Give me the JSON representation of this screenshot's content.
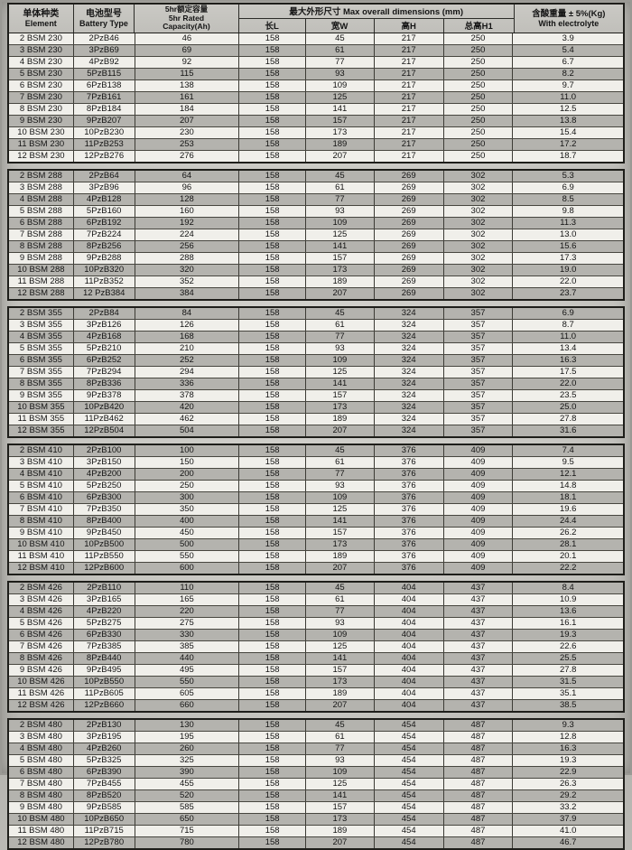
{
  "document_title": "Battery specifications table",
  "header": {
    "element_zh": "单体种类",
    "element_en": "Element",
    "battery_zh": "电池型号",
    "battery_en": "Battery Type",
    "capacity_lines": [
      "5hr额定容量",
      "5hr Rated",
      "Capacity(Ah)"
    ],
    "dims_title": "最大外形尺寸  Max overall dimensions (mm)",
    "dims_cols": [
      "长L",
      "宽W",
      "高H",
      "总高H1"
    ],
    "weight_zh": "含酸重量 ± 5%(Kg)",
    "weight_en": "With electrolyte"
  },
  "colors": {
    "paper": "#c8c7c2",
    "row_light": "#f0efea",
    "row_dark": "#b4b3ae",
    "border": "#1e1e1a"
  },
  "table": {
    "columns": [
      "Element",
      "Battery Type",
      "5hr Rated Capacity(Ah)",
      "长L",
      "宽W",
      "高H",
      "总高H1",
      "With electrolyte (Kg)"
    ],
    "groups": [
      {
        "series": "BSM 230",
        "first_row_shaded": false,
        "rows": [
          [
            "2 BSM 230",
            "2PzB46",
            "46",
            "158",
            "45",
            "217",
            "250",
            "3.9"
          ],
          [
            "3 BSM 230",
            "3PzB69",
            "69",
            "158",
            "61",
            "217",
            "250",
            "5.4"
          ],
          [
            "4 BSM 230",
            "4PzB92",
            "92",
            "158",
            "77",
            "217",
            "250",
            "6.7"
          ],
          [
            "5 BSM 230",
            "5PzB115",
            "115",
            "158",
            "93",
            "217",
            "250",
            "8.2"
          ],
          [
            "6 BSM 230",
            "6PzB138",
            "138",
            "158",
            "109",
            "217",
            "250",
            "9.7"
          ],
          [
            "7 BSM 230",
            "7PzB161",
            "161",
            "158",
            "125",
            "217",
            "250",
            "11.0"
          ],
          [
            "8 BSM 230",
            "8PzB184",
            "184",
            "158",
            "141",
            "217",
            "250",
            "12.5"
          ],
          [
            "9 BSM 230",
            "9PzB207",
            "207",
            "158",
            "157",
            "217",
            "250",
            "13.8"
          ],
          [
            "10 BSM 230",
            "10PzB230",
            "230",
            "158",
            "173",
            "217",
            "250",
            "15.4"
          ],
          [
            "11 BSM 230",
            "11PzB253",
            "253",
            "158",
            "189",
            "217",
            "250",
            "17.2"
          ],
          [
            "12 BSM 230",
            "12PzB276",
            "276",
            "158",
            "207",
            "217",
            "250",
            "18.7"
          ]
        ]
      },
      {
        "series": "BSM 288",
        "first_row_shaded": true,
        "rows": [
          [
            "2 BSM 288",
            "2PzB64",
            "64",
            "158",
            "45",
            "269",
            "302",
            "5.3"
          ],
          [
            "3 BSM 288",
            "3PzB96",
            "96",
            "158",
            "61",
            "269",
            "302",
            "6.9"
          ],
          [
            "4 BSM 288",
            "4PzB128",
            "128",
            "158",
            "77",
            "269",
            "302",
            "8.5"
          ],
          [
            "5 BSM 288",
            "5PzB160",
            "160",
            "158",
            "93",
            "269",
            "302",
            "9.8"
          ],
          [
            "6 BSM 288",
            "6PzB192",
            "192",
            "158",
            "109",
            "269",
            "302",
            "11.3"
          ],
          [
            "7 BSM 288",
            "7PzB224",
            "224",
            "158",
            "125",
            "269",
            "302",
            "13.0"
          ],
          [
            "8 BSM 288",
            "8PzB256",
            "256",
            "158",
            "141",
            "269",
            "302",
            "15.6"
          ],
          [
            "9 BSM 288",
            "9PzB288",
            "288",
            "158",
            "157",
            "269",
            "302",
            "17.3"
          ],
          [
            "10 BSM 288",
            "10PzB320",
            "320",
            "158",
            "173",
            "269",
            "302",
            "19.0"
          ],
          [
            "11 BSM 288",
            "11PzB352",
            "352",
            "158",
            "189",
            "269",
            "302",
            "22.0"
          ],
          [
            "12 BSM 288",
            "12 PzB384",
            "384",
            "158",
            "207",
            "269",
            "302",
            "23.7"
          ]
        ]
      },
      {
        "series": "BSM 355",
        "first_row_shaded": true,
        "rows": [
          [
            "2 BSM 355",
            "2PzB84",
            "84",
            "158",
            "45",
            "324",
            "357",
            "6.9"
          ],
          [
            "3 BSM 355",
            "3PzB126",
            "126",
            "158",
            "61",
            "324",
            "357",
            "8.7"
          ],
          [
            "4 BSM 355",
            "4PzB168",
            "168",
            "158",
            "77",
            "324",
            "357",
            "11.0"
          ],
          [
            "5 BSM 355",
            "5PzB210",
            "210",
            "158",
            "93",
            "324",
            "357",
            "13.4"
          ],
          [
            "6 BSM 355",
            "6PzB252",
            "252",
            "158",
            "109",
            "324",
            "357",
            "16.3"
          ],
          [
            "7 BSM 355",
            "7PzB294",
            "294",
            "158",
            "125",
            "324",
            "357",
            "17.5"
          ],
          [
            "8 BSM 355",
            "8PzB336",
            "336",
            "158",
            "141",
            "324",
            "357",
            "22.0"
          ],
          [
            "9 BSM 355",
            "9PzB378",
            "378",
            "158",
            "157",
            "324",
            "357",
            "23.5"
          ],
          [
            "10 BSM 355",
            "10PzB420",
            "420",
            "158",
            "173",
            "324",
            "357",
            "25.0"
          ],
          [
            "11 BSM 355",
            "11PzB462",
            "462",
            "158",
            "189",
            "324",
            "357",
            "27.8"
          ],
          [
            "12 BSM 355",
            "12PzB504",
            "504",
            "158",
            "207",
            "324",
            "357",
            "31.6"
          ]
        ]
      },
      {
        "series": "BSM 410",
        "first_row_shaded": true,
        "rows": [
          [
            "2 BSM 410",
            "2PzB100",
            "100",
            "158",
            "45",
            "376",
            "409",
            "7.4"
          ],
          [
            "3 BSM 410",
            "3PzB150",
            "150",
            "158",
            "61",
            "376",
            "409",
            "9.5"
          ],
          [
            "4 BSM 410",
            "4PzB200",
            "200",
            "158",
            "77",
            "376",
            "409",
            "12.1"
          ],
          [
            "5 BSM 410",
            "5PzB250",
            "250",
            "158",
            "93",
            "376",
            "409",
            "14.8"
          ],
          [
            "6 BSM 410",
            "6PzB300",
            "300",
            "158",
            "109",
            "376",
            "409",
            "18.1"
          ],
          [
            "7 BSM 410",
            "7PzB350",
            "350",
            "158",
            "125",
            "376",
            "409",
            "19.6"
          ],
          [
            "8 BSM 410",
            "8PzB400",
            "400",
            "158",
            "141",
            "376",
            "409",
            "24.4"
          ],
          [
            "9 BSM 410",
            "9PzB450",
            "450",
            "158",
            "157",
            "376",
            "409",
            "26.2"
          ],
          [
            "10 BSM 410",
            "10PzB500",
            "500",
            "158",
            "173",
            "376",
            "409",
            "28.1"
          ],
          [
            "11 BSM 410",
            "11PzB550",
            "550",
            "158",
            "189",
            "376",
            "409",
            "20.1"
          ],
          [
            "12 BSM 410",
            "12PzB600",
            "600",
            "158",
            "207",
            "376",
            "409",
            "22.2"
          ]
        ]
      },
      {
        "series": "BSM 426",
        "first_row_shaded": true,
        "rows": [
          [
            "2 BSM 426",
            "2PzB110",
            "110",
            "158",
            "45",
            "404",
            "437",
            "8.4"
          ],
          [
            "3 BSM 426",
            "3PzB165",
            "165",
            "158",
            "61",
            "404",
            "437",
            "10.9"
          ],
          [
            "4 BSM 426",
            "4PzB220",
            "220",
            "158",
            "77",
            "404",
            "437",
            "13.6"
          ],
          [
            "5 BSM 426",
            "5PzB275",
            "275",
            "158",
            "93",
            "404",
            "437",
            "16.1"
          ],
          [
            "6 BSM 426",
            "6PzB330",
            "330",
            "158",
            "109",
            "404",
            "437",
            "19.3"
          ],
          [
            "7 BSM 426",
            "7PzB385",
            "385",
            "158",
            "125",
            "404",
            "437",
            "22.6"
          ],
          [
            "8 BSM 426",
            "8PzB440",
            "440",
            "158",
            "141",
            "404",
            "437",
            "25.5"
          ],
          [
            "9 BSM 426",
            "9PzB495",
            "495",
            "158",
            "157",
            "404",
            "437",
            "27.8"
          ],
          [
            "10 BSM 426",
            "10PzB550",
            "550",
            "158",
            "173",
            "404",
            "437",
            "31.5"
          ],
          [
            "11 BSM 426",
            "11PzB605",
            "605",
            "158",
            "189",
            "404",
            "437",
            "35.1"
          ],
          [
            "12 BSM 426",
            "12PzB660",
            "660",
            "158",
            "207",
            "404",
            "437",
            "38.5"
          ]
        ]
      },
      {
        "series": "BSM 480",
        "first_row_shaded": true,
        "rows": [
          [
            "2 BSM 480",
            "2PzB130",
            "130",
            "158",
            "45",
            "454",
            "487",
            "9.3"
          ],
          [
            "3 BSM 480",
            "3PzB195",
            "195",
            "158",
            "61",
            "454",
            "487",
            "12.8"
          ],
          [
            "4 BSM 480",
            "4PzB260",
            "260",
            "158",
            "77",
            "454",
            "487",
            "16.3"
          ],
          [
            "5 BSM 480",
            "5PzB325",
            "325",
            "158",
            "93",
            "454",
            "487",
            "19.3"
          ],
          [
            "6 BSM 480",
            "6PzB390",
            "390",
            "158",
            "109",
            "454",
            "487",
            "22.9"
          ],
          [
            "7 BSM 480",
            "7PzB455",
            "455",
            "158",
            "125",
            "454",
            "487",
            "26.3"
          ],
          [
            "8 BSM 480",
            "8PzB520",
            "520",
            "158",
            "141",
            "454",
            "487",
            "29.2"
          ],
          [
            "9 BSM 480",
            "9PzB585",
            "585",
            "158",
            "157",
            "454",
            "487",
            "33.2"
          ],
          [
            "10 BSM 480",
            "10PzB650",
            "650",
            "158",
            "173",
            "454",
            "487",
            "37.9"
          ],
          [
            "11 BSM 480",
            "11PzB715",
            "715",
            "158",
            "189",
            "454",
            "487",
            "41.0"
          ],
          [
            "12 BSM 480",
            "12PzB780",
            "780",
            "158",
            "207",
            "454",
            "487",
            "46.7"
          ]
        ]
      }
    ]
  }
}
